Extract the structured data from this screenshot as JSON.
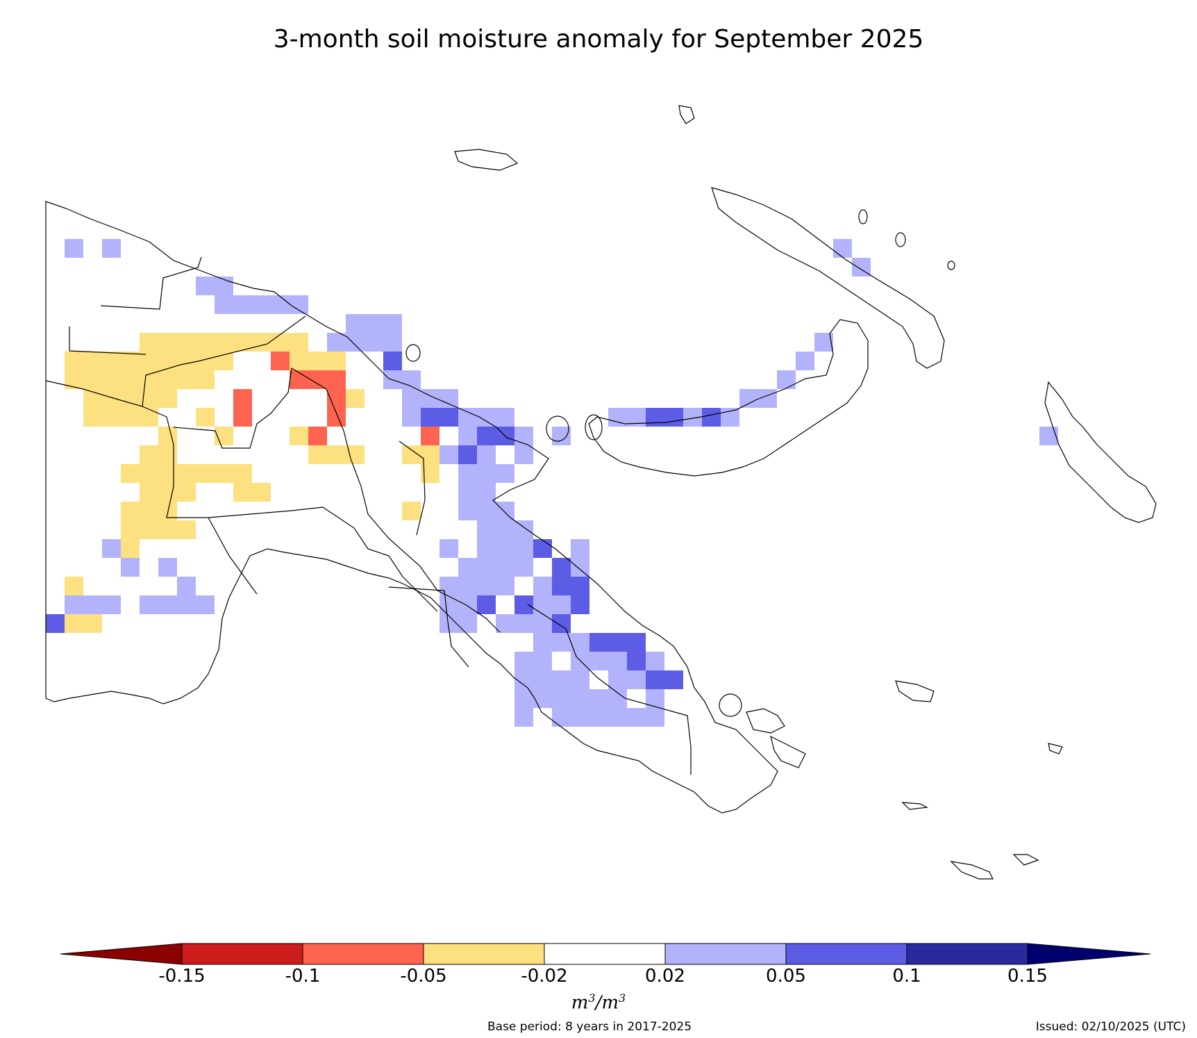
{
  "title": "3-month soil moisture anomaly for September 2025",
  "colorbar": {
    "ticks": [
      "-0.15",
      "-0.1",
      "-0.05",
      "-0.02",
      "0.02",
      "0.05",
      "0.1",
      "0.15"
    ],
    "colors": [
      "#8b0000",
      "#cd1c1c",
      "#fe634f",
      "#fde07f",
      "#ffffff",
      "#b3b3fb",
      "#5c5ce4",
      "#2a2a9e",
      "#00006e"
    ],
    "unit_base": "m",
    "unit_exp": "3",
    "unit_sep": "/"
  },
  "footer": {
    "base_period": "Base period: 8 years in 2017-2025",
    "issued": "Issued: 02/10/2025 (UTC)"
  },
  "map": {
    "region": "Papua New Guinea",
    "category_colors": {
      "dry1": "#fde07f",
      "dry2": "#fe634f",
      "wet1": "#b3b3fb",
      "wet2": "#5c5ce4"
    }
  }
}
